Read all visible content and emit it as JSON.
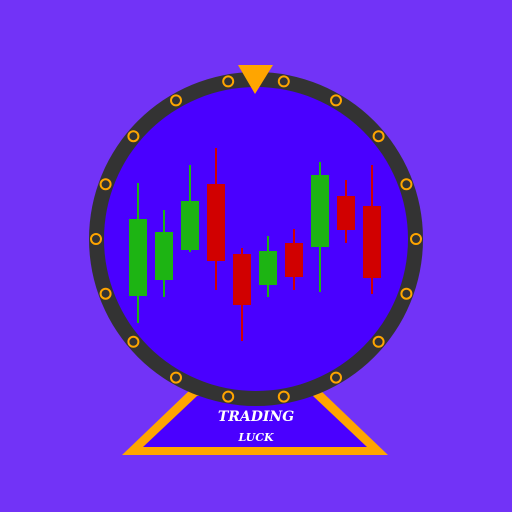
{
  "logo": {
    "line1": "TRADING",
    "line2": "LUCK"
  },
  "colors": {
    "background": "#7233F7",
    "wheel_rim": "#333333",
    "wheel_face": "#4A00FF",
    "accent": "#FFA500",
    "bullish": "#1DB413",
    "bearish": "#D10000"
  },
  "icons": {
    "pointer": "triangle-pointer-icon",
    "stand": "triangle-stand-icon",
    "peg": "ring-peg-icon"
  }
}
